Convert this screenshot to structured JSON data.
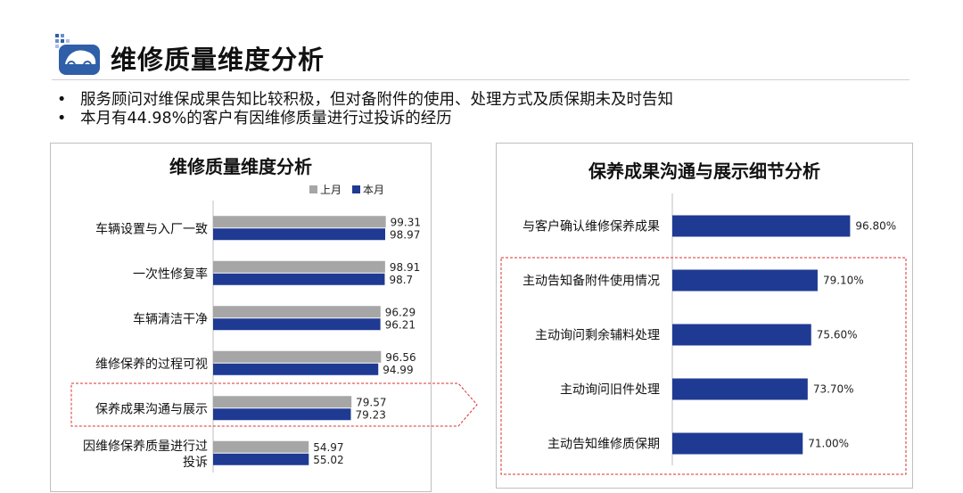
{
  "page": {
    "title": "维修质量维度分析",
    "bullets": [
      "服务顾问对维保成果告知比较积极，但对备附件的使用、处理方式及质保期未及时告知",
      "本月有44.98%的客户有因维修质量进行过投诉的经历"
    ]
  },
  "colors": {
    "last_month": "#A6A6A6",
    "this_month": "#1F3A93",
    "highlight": "#D9302F",
    "logo_blue": "#2E5FA8"
  },
  "chart_data": [
    {
      "type": "bar",
      "orientation": "horizontal",
      "title": "维修质量维度分析",
      "legend_position": "top-right",
      "categories": [
        "车辆设置与入厂一致",
        "一次性修复率",
        "车辆清洁干净",
        "维修保养的过程可视",
        "保养成果沟通与展示",
        "因维修保养质量进行过投诉"
      ],
      "series": [
        {
          "name": "上月",
          "values": [
            99.31,
            98.91,
            96.29,
            96.56,
            79.57,
            54.97
          ]
        },
        {
          "name": "本月",
          "values": [
            98.97,
            98.7,
            96.21,
            94.99,
            79.23,
            55.02
          ]
        }
      ],
      "value_labels": [
        [
          "99.31",
          "98.91",
          "96.29",
          "96.56",
          "79.57",
          "54.97"
        ],
        [
          "98.97",
          "98.7",
          "96.21",
          "94.99",
          "79.23",
          "55.02"
        ]
      ],
      "xlim": [
        0,
        100
      ],
      "grid": false,
      "highlight_category": "保养成果沟通与展示"
    },
    {
      "type": "bar",
      "orientation": "horizontal",
      "title": "保养成果沟通与展示细节分析",
      "categories": [
        "与客户确认维修保养成果",
        "主动告知备附件使用情况",
        "主动询问剩余辅料处理",
        "主动询问旧件处理",
        "主动告知维修质保期"
      ],
      "values": [
        96.8,
        79.1,
        75.6,
        73.7,
        71.0
      ],
      "value_labels": [
        "96.80%",
        "79.10%",
        "75.60%",
        "73.70%",
        "71.00%"
      ],
      "xlim": [
        0,
        100
      ],
      "grid": false,
      "highlight_categories": [
        "主动告知备附件使用情况",
        "主动询问剩余辅料处理",
        "主动询问旧件处理",
        "主动告知维修质保期"
      ]
    }
  ]
}
